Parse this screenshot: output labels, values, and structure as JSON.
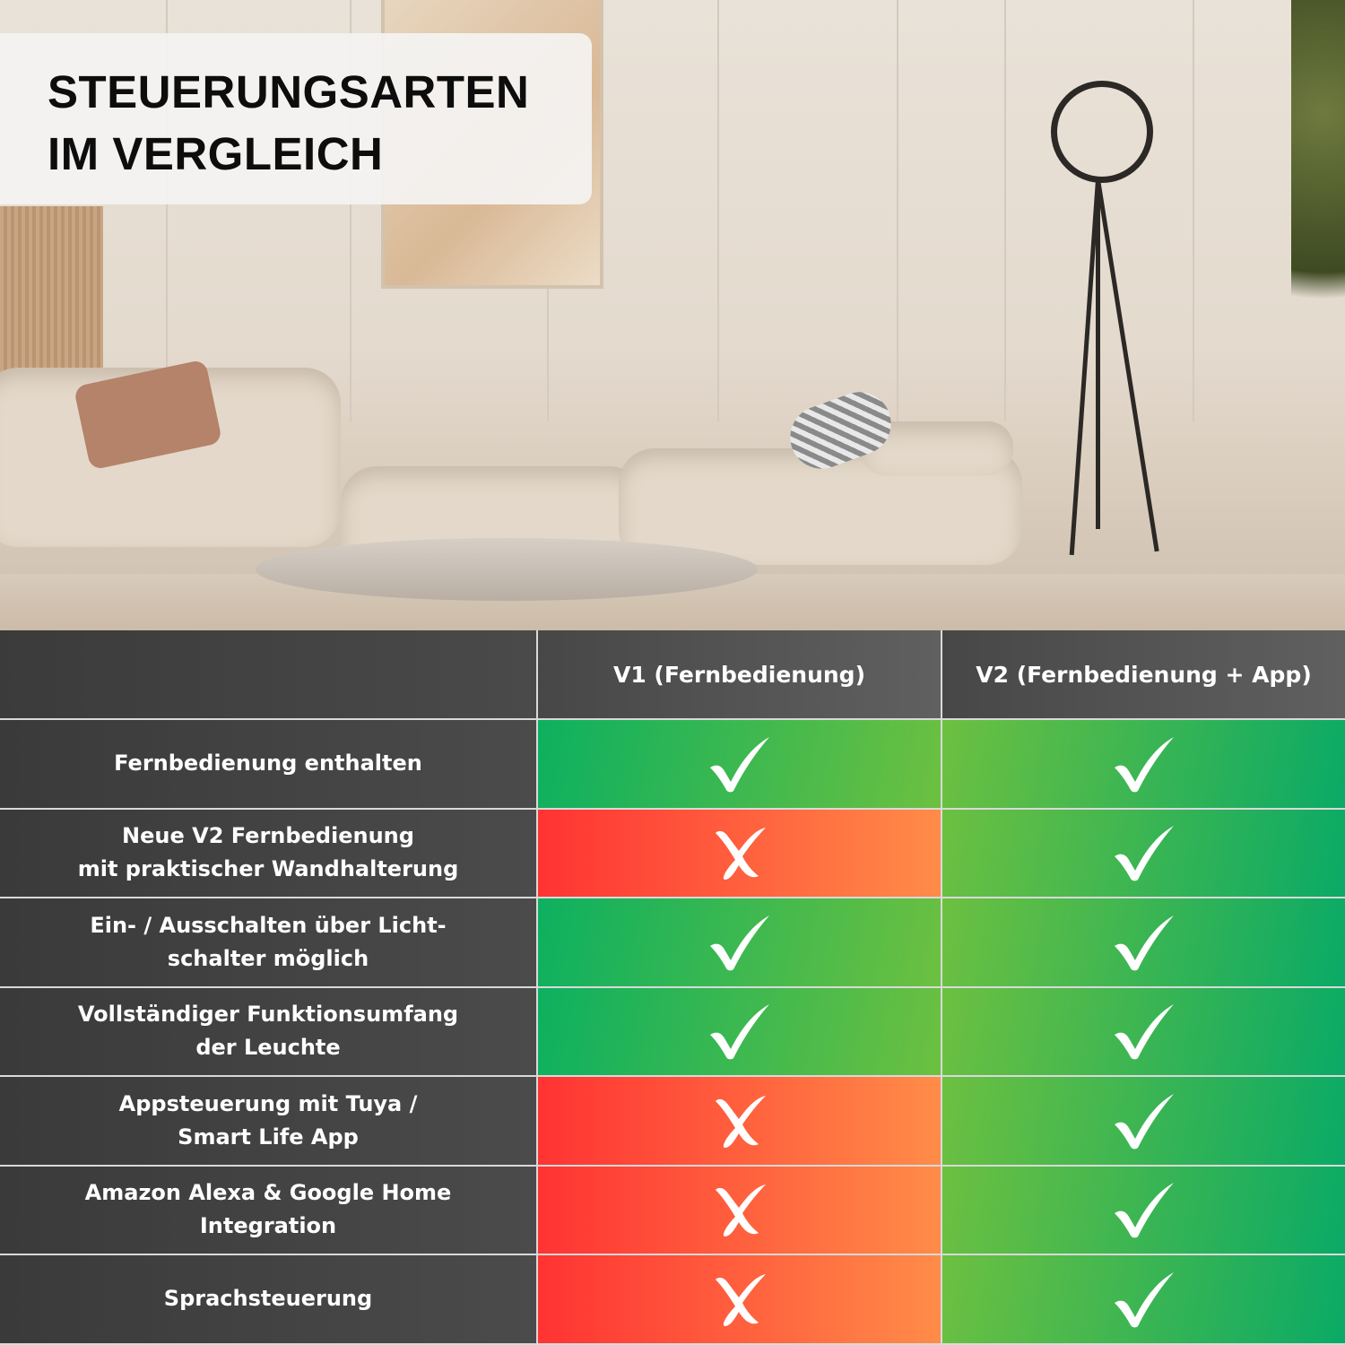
{
  "title": {
    "line1": "STEUERUNGSARTEN",
    "line2": "IM VERGLEICH"
  },
  "table": {
    "columns": [
      "",
      "V1 (Fernbedienung)",
      "V2 (Fernbedienung + App)"
    ],
    "rows": [
      {
        "label": "Fernbedienung enthalten",
        "v1": "check",
        "v2": "check"
      },
      {
        "label": "Neue V2 Fernbedienung\nmit praktischer Wandhalterung",
        "v1": "cross",
        "v2": "check"
      },
      {
        "label": "Ein- / Ausschalten über Licht-\nschalter möglich",
        "v1": "check",
        "v2": "check"
      },
      {
        "label": "Vollständiger Funktionsumfang\nder Leuchte",
        "v1": "check",
        "v2": "check"
      },
      {
        "label": "Appsteuerung mit Tuya /\nSmart Life App",
        "v1": "cross",
        "v2": "check"
      },
      {
        "label": "Amazon Alexa & Google Home\nIntegration",
        "v1": "cross",
        "v2": "check"
      },
      {
        "label": "Sprachsteuerung",
        "v1": "cross",
        "v2": "check"
      }
    ]
  },
  "colors": {
    "yes_a": "#0db060",
    "yes_b": "#6cc040",
    "no_a": "#ff3333",
    "no_b": "#ff8c48",
    "header": "#4a4a4a"
  }
}
